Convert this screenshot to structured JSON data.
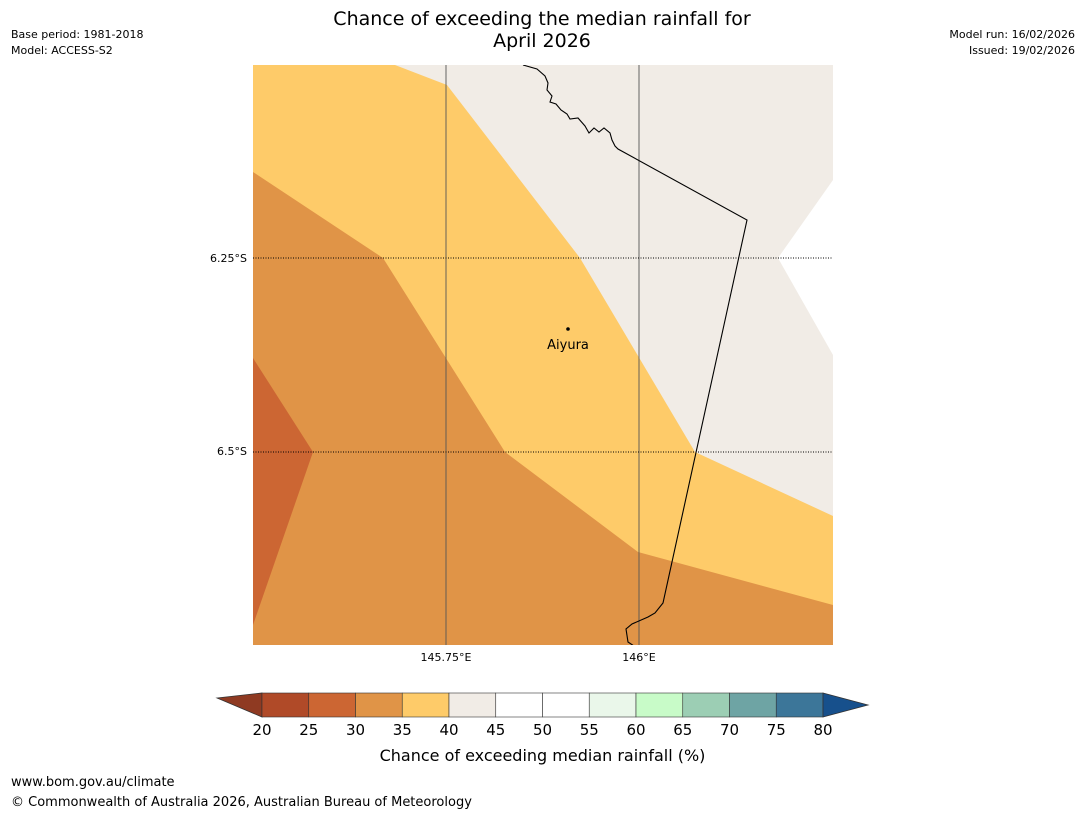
{
  "title": {
    "line1": "Chance of exceeding the median rainfall for",
    "line2": "April 2026"
  },
  "meta_left": {
    "base_period": "Base period: 1981-2018",
    "model": "Model: ACCESS-S2"
  },
  "meta_right": {
    "model_run": "Model run: 16/02/2026",
    "issued": "Issued: 19/02/2026"
  },
  "map": {
    "place": "Aiyura",
    "lat_labels": [
      "6.25°S",
      "6.5°S"
    ],
    "lon_labels": [
      "145.75°E",
      "146°E"
    ]
  },
  "colorbar": {
    "label": "Chance of exceeding median rainfall (%)",
    "ticks": [
      "20",
      "25",
      "30",
      "35",
      "40",
      "45",
      "50",
      "55",
      "60",
      "65",
      "70",
      "75",
      "80"
    ],
    "colors": {
      "below": "#8f3a22",
      "bins": [
        "#b04a28",
        "#cc6633",
        "#e09447",
        "#fecb69",
        "#f1ece6",
        "#ffffff",
        "#ffffff",
        "#eaf7ea",
        "#c8fbc8",
        "#9cceb4",
        "#6ea4a4",
        "#3c7699"
      ],
      "above": "#17508c"
    }
  },
  "footer": {
    "url": "www.bom.gov.au/climate",
    "copyright": "© Commonwealth of Australia 2026, Australian Bureau of Meteorology"
  }
}
